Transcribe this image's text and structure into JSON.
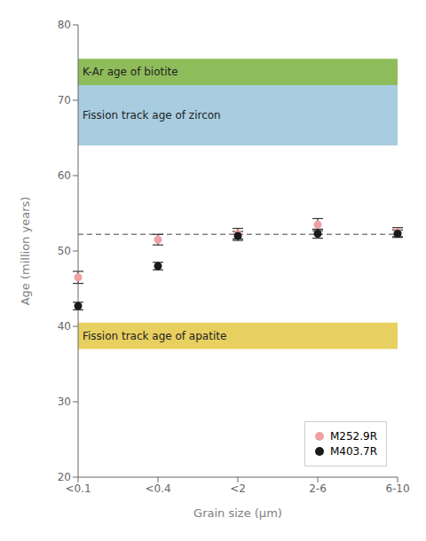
{
  "chart_data": {
    "type": "scatter",
    "categories": [
      "<0.1",
      "<0.4",
      "<2",
      "2-6",
      "6-10"
    ],
    "xlabel": "Grain size (μm)",
    "ylabel": "Age (million years)",
    "ylim": [
      20,
      80
    ],
    "yticks": [
      20,
      30,
      40,
      50,
      60,
      70,
      80
    ],
    "legend": "lower right",
    "series": [
      {
        "name": "M252.9R",
        "color": "#f0a0a0",
        "marker": "circle",
        "values": [
          46.5,
          51.5,
          52.3,
          53.5,
          52.5
        ],
        "errors": [
          0.8,
          0.7,
          0.7,
          0.8,
          0.6
        ]
      },
      {
        "name": "M403.7R",
        "color": "#1a1a1a",
        "marker": "circle",
        "values": [
          42.7,
          48.0,
          52.0,
          52.3,
          52.3
        ],
        "errors": [
          0.5,
          0.5,
          0.6,
          0.6,
          0.5
        ]
      }
    ],
    "bands": [
      {
        "from": 72.0,
        "to": 75.5,
        "color": "#8fbc5a",
        "label": "K-Ar age of biotite"
      },
      {
        "from": 64.0,
        "to": 72.0,
        "color": "#a8cce0",
        "label": "Fission track age of zircon"
      },
      {
        "from": 37.0,
        "to": 40.5,
        "color": "#e8d060",
        "label": "Fission track age of apatite"
      }
    ],
    "reference_lines": [
      {
        "y": 52.2,
        "color": "gray",
        "line_style": "dashed"
      }
    ]
  }
}
